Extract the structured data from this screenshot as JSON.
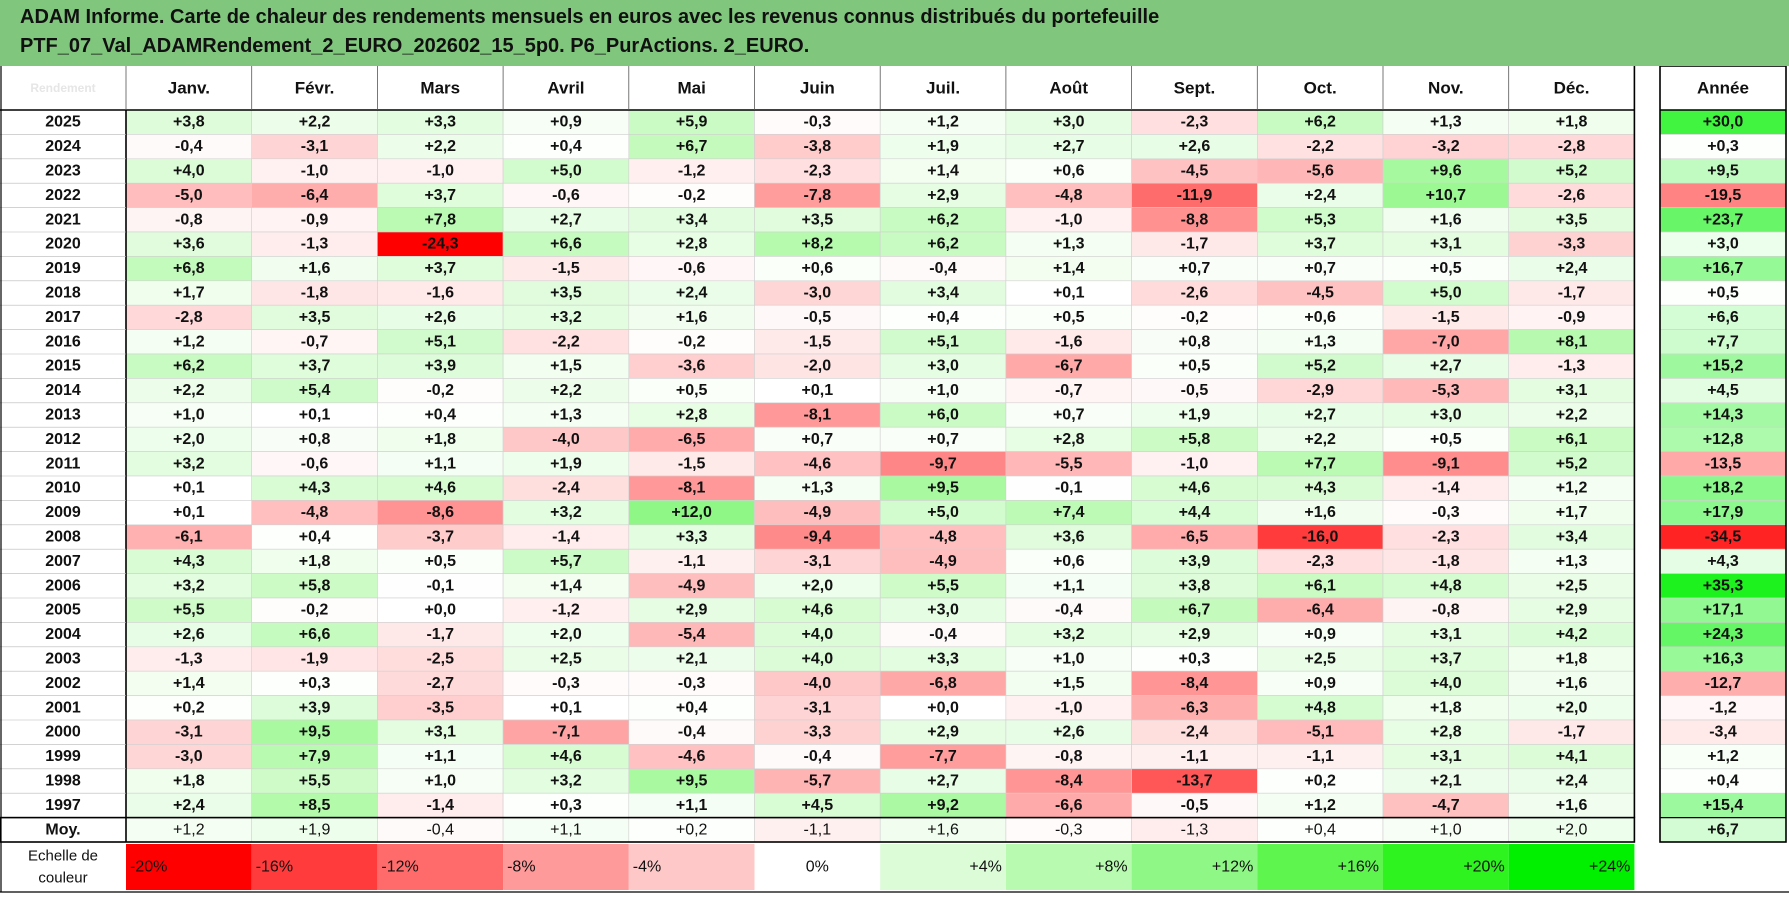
{
  "title": {
    "line1": "ADAM Informe. Carte de chaleur des rendements mensuels en euros avec les revenus connus distribués du portefeuille",
    "line2": "PTF_07_Val_ADAMRendement_2_EURO_202602_15_5p0. P6_PurActions. 2_EURO."
  },
  "chart_data": {
    "type": "heatmap",
    "corner_label": "Rendement",
    "months": [
      "Janv.",
      "Févr.",
      "Mars",
      "Avril",
      "Mai",
      "Juin",
      "Juil.",
      "Août",
      "Sept.",
      "Oct.",
      "Nov.",
      "Déc."
    ],
    "year_header": "Année",
    "rows": [
      {
        "year": "2025",
        "values": [
          3.8,
          2.2,
          3.3,
          0.9,
          5.9,
          -0.3,
          1.2,
          3.0,
          -2.3,
          6.2,
          1.3,
          1.8
        ],
        "annual": 30.0
      },
      {
        "year": "2024",
        "values": [
          -0.4,
          -3.1,
          2.2,
          0.4,
          6.7,
          -3.8,
          1.9,
          2.7,
          2.6,
          -2.2,
          -3.2,
          -2.8
        ],
        "annual": 0.3
      },
      {
        "year": "2023",
        "values": [
          4.0,
          -1.0,
          -1.0,
          5.0,
          -1.2,
          -2.3,
          1.4,
          0.6,
          -4.5,
          -5.6,
          9.6,
          5.2
        ],
        "annual": 9.5
      },
      {
        "year": "2022",
        "values": [
          -5.0,
          -6.4,
          3.7,
          -0.6,
          -0.2,
          -7.8,
          2.9,
          -4.8,
          -11.9,
          2.4,
          10.7,
          -2.6
        ],
        "annual": -19.5
      },
      {
        "year": "2021",
        "values": [
          -0.8,
          -0.9,
          7.8,
          2.7,
          3.4,
          3.5,
          6.2,
          -1.0,
          -8.8,
          5.3,
          1.6,
          3.5
        ],
        "annual": 23.7
      },
      {
        "year": "2020",
        "values": [
          3.6,
          -1.3,
          -24.3,
          6.6,
          2.8,
          8.2,
          6.2,
          1.3,
          -1.7,
          3.7,
          3.1,
          -3.3
        ],
        "annual": 3.0
      },
      {
        "year": "2019",
        "values": [
          6.8,
          1.6,
          3.7,
          -1.5,
          -0.6,
          0.6,
          -0.4,
          1.4,
          0.7,
          0.7,
          0.5,
          2.4
        ],
        "annual": 16.7
      },
      {
        "year": "2018",
        "values": [
          1.7,
          -1.8,
          -1.6,
          3.5,
          2.4,
          -3.0,
          3.4,
          0.1,
          -2.6,
          -4.5,
          5.0,
          -1.7
        ],
        "annual": 0.5
      },
      {
        "year": "2017",
        "values": [
          -2.8,
          3.5,
          2.6,
          3.2,
          1.6,
          -0.5,
          0.4,
          0.5,
          -0.2,
          0.6,
          -1.5,
          -0.9
        ],
        "annual": 6.6
      },
      {
        "year": "2016",
        "values": [
          1.2,
          -0.7,
          5.1,
          -2.2,
          -0.2,
          -1.5,
          5.1,
          -1.6,
          0.8,
          1.3,
          -7.0,
          8.1
        ],
        "annual": 7.7
      },
      {
        "year": "2015",
        "values": [
          6.2,
          3.7,
          3.9,
          1.5,
          -3.6,
          -2.0,
          3.0,
          -6.7,
          0.5,
          5.2,
          2.7,
          -1.3
        ],
        "annual": 15.2
      },
      {
        "year": "2014",
        "values": [
          2.2,
          5.4,
          -0.2,
          2.2,
          0.5,
          0.1,
          1.0,
          -0.7,
          -0.5,
          -2.9,
          -5.3,
          3.1
        ],
        "annual": 4.5
      },
      {
        "year": "2013",
        "values": [
          1.0,
          0.1,
          0.4,
          1.3,
          2.8,
          -8.1,
          6.0,
          0.7,
          1.9,
          2.7,
          3.0,
          2.2
        ],
        "annual": 14.3
      },
      {
        "year": "2012",
        "values": [
          2.0,
          0.8,
          1.8,
          -4.0,
          -6.5,
          0.7,
          0.7,
          2.8,
          5.8,
          2.2,
          0.5,
          6.1
        ],
        "annual": 12.8
      },
      {
        "year": "2011",
        "values": [
          3.2,
          -0.6,
          1.1,
          1.9,
          -1.5,
          -4.6,
          -9.7,
          -5.5,
          -1.0,
          7.7,
          -9.1,
          5.2
        ],
        "annual": -13.5
      },
      {
        "year": "2010",
        "values": [
          0.1,
          4.3,
          4.6,
          -2.4,
          -8.1,
          1.3,
          9.5,
          -0.1,
          4.6,
          4.3,
          -1.4,
          1.2
        ],
        "annual": 18.2
      },
      {
        "year": "2009",
        "values": [
          0.1,
          -4.8,
          -8.6,
          3.2,
          12.0,
          -4.9,
          5.0,
          7.4,
          4.4,
          1.6,
          -0.3,
          1.7
        ],
        "annual": 17.9
      },
      {
        "year": "2008",
        "values": [
          -6.1,
          0.4,
          -3.7,
          -1.4,
          3.3,
          -9.4,
          -4.8,
          3.6,
          -6.5,
          -16.0,
          -2.3,
          3.4
        ],
        "annual": -34.5
      },
      {
        "year": "2007",
        "values": [
          4.3,
          1.8,
          0.5,
          5.7,
          -1.1,
          -3.1,
          -4.9,
          0.6,
          3.9,
          -2.3,
          -1.8,
          1.3
        ],
        "annual": 4.3
      },
      {
        "year": "2006",
        "values": [
          3.2,
          5.8,
          -0.1,
          1.4,
          -4.9,
          2.0,
          5.5,
          1.1,
          3.8,
          6.1,
          4.8,
          2.5
        ],
        "annual": 35.3
      },
      {
        "year": "2005",
        "values": [
          5.5,
          -0.2,
          0.0,
          -1.2,
          2.9,
          4.6,
          3.0,
          -0.4,
          6.7,
          -6.4,
          -0.8,
          2.9
        ],
        "annual": 17.1
      },
      {
        "year": "2004",
        "values": [
          2.6,
          6.6,
          -1.7,
          2.0,
          -5.4,
          4.0,
          -0.4,
          3.2,
          2.9,
          0.9,
          3.1,
          4.2
        ],
        "annual": 24.3
      },
      {
        "year": "2003",
        "values": [
          -1.3,
          -1.9,
          -2.5,
          2.5,
          2.1,
          4.0,
          3.3,
          1.0,
          0.3,
          2.5,
          3.7,
          1.8
        ],
        "annual": 16.3
      },
      {
        "year": "2002",
        "values": [
          1.4,
          0.3,
          -2.7,
          -0.3,
          -0.3,
          -4.0,
          -6.8,
          1.5,
          -8.4,
          0.9,
          4.0,
          1.6
        ],
        "annual": -12.7
      },
      {
        "year": "2001",
        "values": [
          0.2,
          3.9,
          -3.5,
          0.1,
          0.4,
          -3.1,
          0.0,
          -1.0,
          -6.3,
          4.8,
          1.8,
          2.0
        ],
        "annual": -1.2
      },
      {
        "year": "2000",
        "values": [
          -3.1,
          9.5,
          3.1,
          -7.1,
          -0.4,
          -3.3,
          2.9,
          2.6,
          -2.4,
          -5.1,
          2.8,
          -1.7
        ],
        "annual": -3.4
      },
      {
        "year": "1999",
        "values": [
          -3.0,
          7.9,
          1.1,
          4.6,
          -4.6,
          -0.4,
          -7.7,
          -0.8,
          -1.1,
          -1.1,
          3.1,
          4.1
        ],
        "annual": 1.2
      },
      {
        "year": "1998",
        "values": [
          1.8,
          5.5,
          1.0,
          3.2,
          9.5,
          -5.7,
          2.7,
          -8.4,
          -13.7,
          0.2,
          2.1,
          2.4
        ],
        "annual": 0.4
      },
      {
        "year": "1997",
        "values": [
          2.4,
          8.5,
          -1.4,
          0.3,
          1.1,
          4.5,
          9.2,
          -6.6,
          -0.5,
          1.2,
          -4.7,
          1.6
        ],
        "annual": 15.4
      }
    ],
    "average": {
      "label": "Moy.",
      "values": [
        1.2,
        1.9,
        -0.4,
        1.1,
        0.2,
        -1.1,
        1.6,
        -0.3,
        -1.3,
        0.4,
        1.0,
        2.0
      ],
      "annual": 6.7
    },
    "scale": {
      "label_line1": "Echelle de",
      "label_line2": "couleur",
      "stops": [
        -20,
        -16,
        -12,
        -8,
        -4,
        0,
        4,
        8,
        12,
        16,
        20,
        24
      ],
      "labels": [
        "-20%",
        "-16%",
        "-12%",
        "-8%",
        "-4%",
        "0%",
        "+4%",
        "+8%",
        "+12%",
        "+16%",
        "+20%",
        "+24%"
      ],
      "stop_colors": [
        "#ff0000",
        "#ff3b3b",
        "#ff6b6b",
        "#ff9a9a",
        "#ffc8c8",
        "#ffffff",
        "#dcfcd8",
        "#b8fab0",
        "#8ef785",
        "#5ef54f",
        "#2ef31e",
        "#00f000"
      ],
      "annual_stops": [
        -40,
        0,
        40
      ],
      "annual_colors": [
        "#ff0000",
        "#ffffff",
        "#00f000"
      ]
    }
  }
}
